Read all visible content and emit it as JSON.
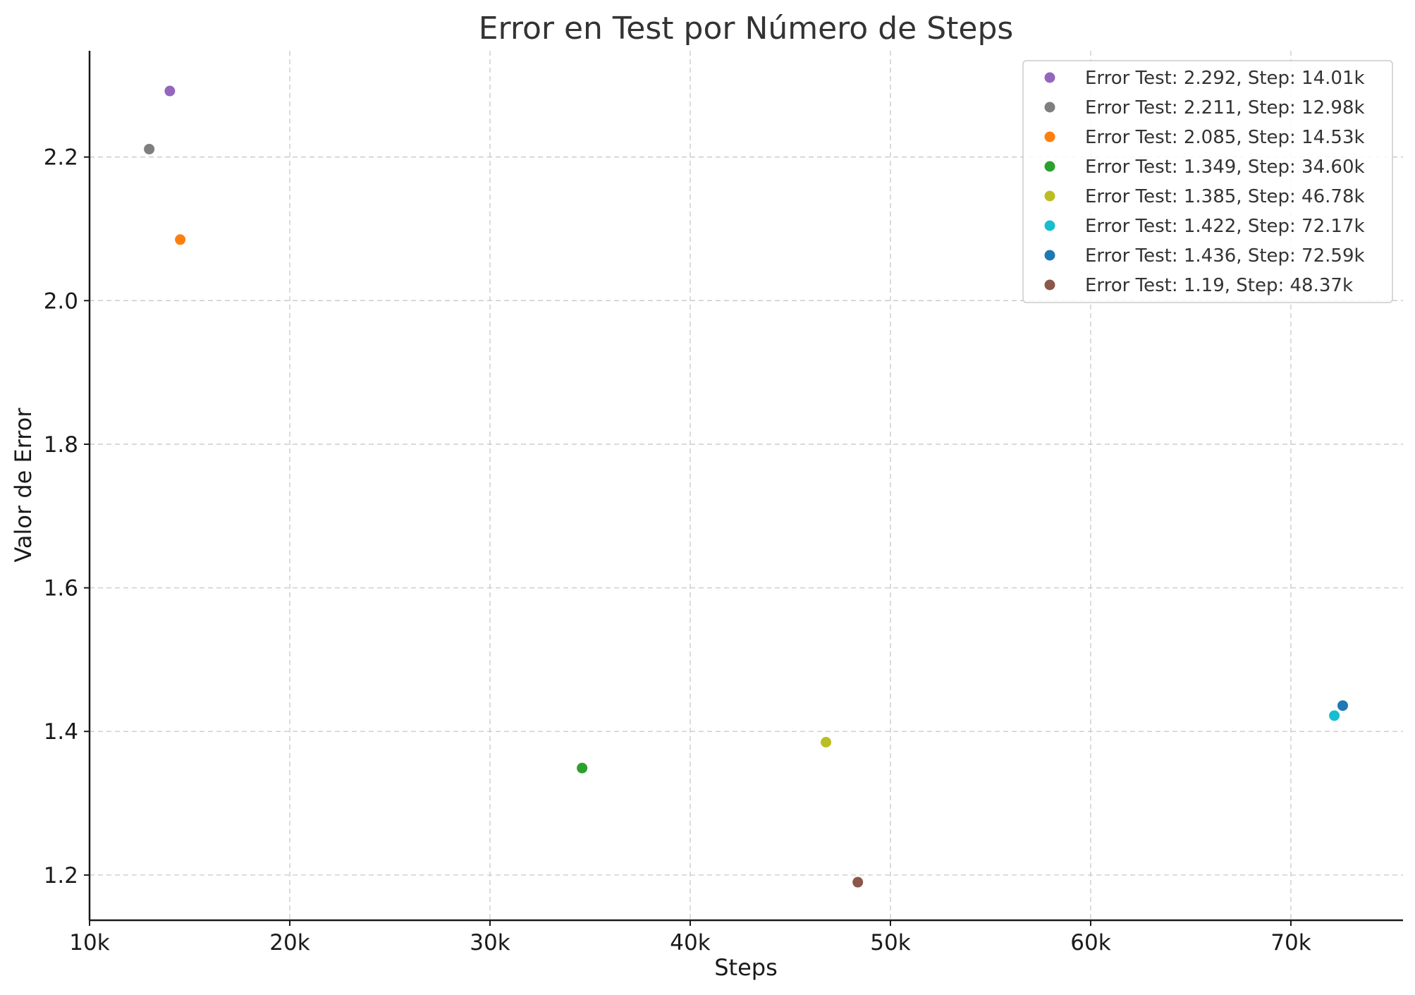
{
  "chart_data": {
    "type": "scatter",
    "title": "Error en Test por Número de Steps",
    "xlabel": "Steps",
    "ylabel": "Valor de Error",
    "xlim": [
      10000,
      75600
    ],
    "ylim": [
      1.137,
      2.348
    ],
    "x_ticks": [
      {
        "value": 10000,
        "label": "10k"
      },
      {
        "value": 20000,
        "label": "20k"
      },
      {
        "value": 30000,
        "label": "30k"
      },
      {
        "value": 40000,
        "label": "40k"
      },
      {
        "value": 50000,
        "label": "50k"
      },
      {
        "value": 60000,
        "label": "60k"
      },
      {
        "value": 70000,
        "label": "70k"
      }
    ],
    "y_ticks": [
      {
        "value": 1.2,
        "label": "1.2"
      },
      {
        "value": 1.4,
        "label": "1.4"
      },
      {
        "value": 1.6,
        "label": "1.6"
      },
      {
        "value": 1.8,
        "label": "1.8"
      },
      {
        "value": 2.0,
        "label": "2.0"
      },
      {
        "value": 2.2,
        "label": "2.2"
      }
    ],
    "grid": true,
    "legend_position": "top-right",
    "series": [
      {
        "name": "Error Test: 2.292, Step: 14.01k",
        "x": 14010,
        "y": 2.292,
        "color": "#9467bd"
      },
      {
        "name": "Error Test: 2.211, Step: 12.98k",
        "x": 12980,
        "y": 2.211,
        "color": "#7f7f7f"
      },
      {
        "name": "Error Test: 2.085, Step: 14.53k",
        "x": 14530,
        "y": 2.085,
        "color": "#ff7f0e"
      },
      {
        "name": "Error Test: 1.349, Step: 34.60k",
        "x": 34600,
        "y": 1.349,
        "color": "#2ca02c"
      },
      {
        "name": "Error Test: 1.385, Step: 46.78k",
        "x": 46780,
        "y": 1.385,
        "color": "#bcbd22"
      },
      {
        "name": "Error Test: 1.422, Step: 72.17k",
        "x": 72170,
        "y": 1.422,
        "color": "#17becf"
      },
      {
        "name": "Error Test: 1.436, Step: 72.59k",
        "x": 72590,
        "y": 1.436,
        "color": "#1f77b4"
      },
      {
        "name": "Error Test: 1.19, Step: 48.37k",
        "x": 48370,
        "y": 1.19,
        "color": "#8c564b"
      }
    ]
  }
}
